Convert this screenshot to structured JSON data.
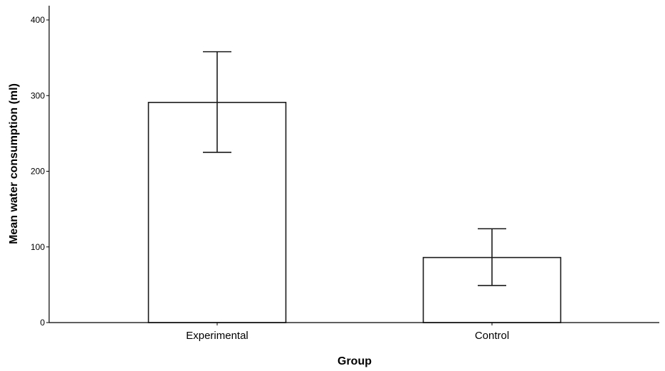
{
  "chart_data": {
    "type": "bar",
    "title": "",
    "xlabel": "Group",
    "ylabel": "Mean water consumption (ml)",
    "categories": [
      "Experimental",
      "Control"
    ],
    "values": [
      291,
      86
    ],
    "error_bars": {
      "lower": [
        225,
        49
      ],
      "upper": [
        358,
        124
      ]
    },
    "ylim": [
      0,
      420
    ],
    "yticks": [
      0,
      100,
      200,
      300,
      400
    ],
    "grid": false,
    "legend": "none",
    "bar_fill": "#ffffff",
    "bar_stroke": "#1a1a1a"
  }
}
